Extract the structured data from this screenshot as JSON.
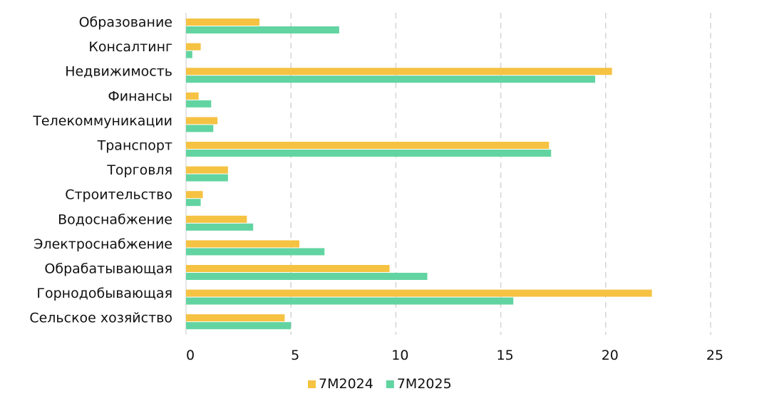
{
  "chart_data": {
    "type": "bar",
    "orientation": "horizontal",
    "categories": [
      "Образование",
      "Консалтинг",
      "Недвижимость",
      "Финансы",
      "Телекоммуникации",
      "Транспорт",
      "Торговля",
      "Строительство",
      "Водоснабжение",
      "Электроснабжение",
      "Обрабатывающая",
      "Горнодобывающая",
      "Сельское хозяйство"
    ],
    "series": [
      {
        "name": "7M2024",
        "color": "#f5c242",
        "values": [
          3.5,
          0.7,
          20.3,
          0.6,
          1.5,
          17.3,
          2.0,
          0.8,
          2.9,
          5.4,
          9.7,
          22.2,
          4.7
        ]
      },
      {
        "name": "7M2025",
        "color": "#62d4a1",
        "values": [
          7.3,
          0.3,
          19.5,
          1.2,
          1.3,
          17.4,
          2.0,
          0.7,
          3.2,
          6.6,
          11.5,
          15.6,
          5.0
        ]
      }
    ],
    "xlim": [
      0,
      25
    ],
    "xticks": [
      0,
      5,
      10,
      15,
      20,
      25
    ],
    "title": "",
    "xlabel": "",
    "ylabel": "",
    "grid": "vertical dashed",
    "legend_position": "bottom-center"
  }
}
